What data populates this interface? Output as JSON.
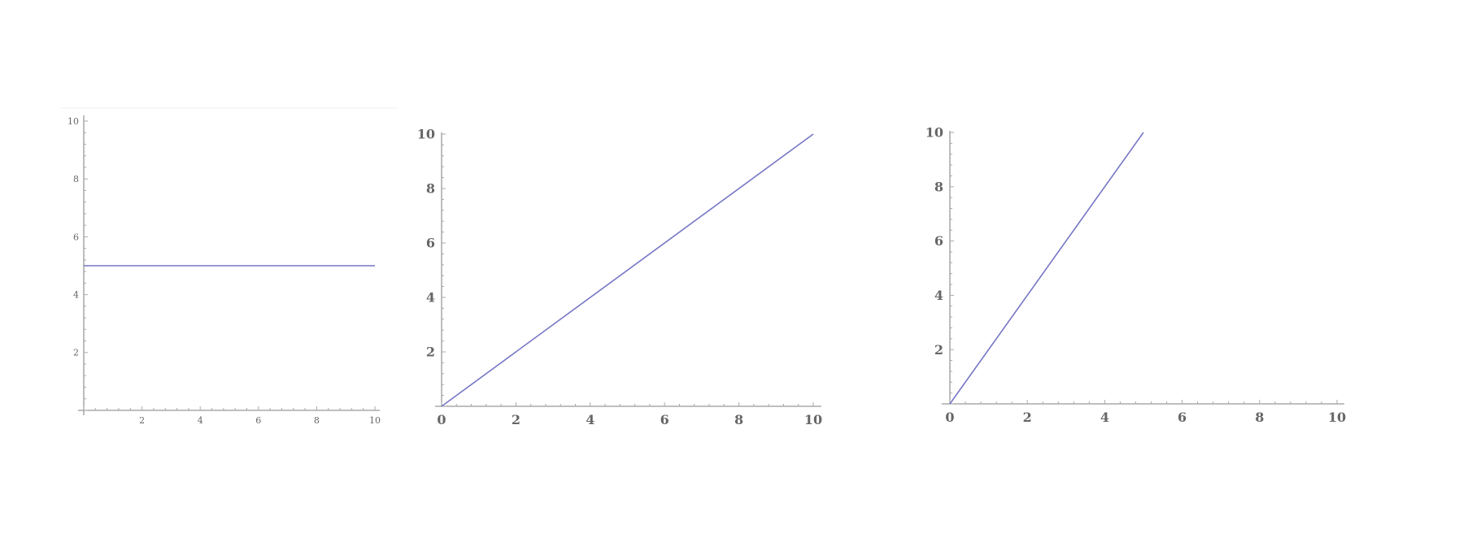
{
  "chart_data": [
    {
      "type": "line",
      "xlim": [
        0,
        10
      ],
      "ylim": [
        0,
        10
      ],
      "x_ticks": [
        "2",
        "4",
        "6",
        "8",
        "10"
      ],
      "y_ticks": [
        "2",
        "4",
        "6",
        "8",
        "10"
      ],
      "series": [
        {
          "x": [
            0,
            10
          ],
          "y": [
            5,
            5
          ]
        }
      ],
      "grid": false,
      "line_color": "#7676c6"
    },
    {
      "type": "line",
      "xlim": [
        0,
        10
      ],
      "ylim": [
        0,
        10
      ],
      "x_ticks": [
        "0",
        "2",
        "4",
        "6",
        "8",
        "10"
      ],
      "y_ticks": [
        "2",
        "4",
        "6",
        "8",
        "10"
      ],
      "series": [
        {
          "x": [
            0,
            10
          ],
          "y": [
            0,
            10
          ]
        }
      ],
      "grid": false,
      "line_color": "#7676c6"
    },
    {
      "type": "line",
      "xlim": [
        0,
        10
      ],
      "ylim": [
        0,
        10
      ],
      "x_ticks": [
        "0",
        "2",
        "4",
        "6",
        "8",
        "10"
      ],
      "y_ticks": [
        "2",
        "4",
        "6",
        "8",
        "10"
      ],
      "series": [
        {
          "x": [
            0,
            5
          ],
          "y": [
            0,
            10
          ]
        }
      ],
      "grid": false,
      "line_color": "#7676c6"
    }
  ]
}
